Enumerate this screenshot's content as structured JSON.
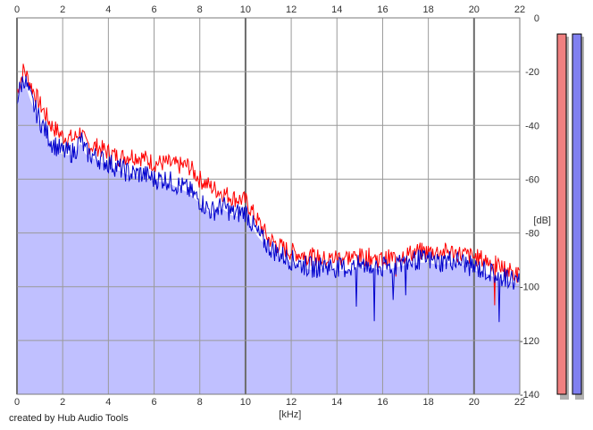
{
  "chart_data": {
    "type": "area",
    "xlabel": "[kHz]",
    "ylabel": "[dB]",
    "xlim": [
      0,
      22
    ],
    "ylim": [
      -140,
      0
    ],
    "x_ticks": [
      0,
      2,
      4,
      6,
      8,
      10,
      12,
      14,
      16,
      18,
      20,
      22
    ],
    "x_tick_labels": [
      "0",
      "2",
      "4",
      "6",
      "8",
      "10",
      "12",
      "14",
      "16",
      "18",
      "20",
      "22"
    ],
    "y_ticks": [
      0,
      -20,
      -40,
      -60,
      -80,
      -100,
      -120,
      -140
    ],
    "y_tick_labels": [
      "0",
      "-20",
      "-40",
      "-60",
      "-80",
      "-100",
      "-120",
      "-140"
    ],
    "grid": true,
    "series": [
      {
        "color": "#ff0000",
        "x": [
          0.0,
          0.3,
          0.6,
          1.0,
          1.5,
          2.0,
          2.5,
          2.8,
          3.0,
          3.5,
          4.0,
          4.5,
          5.0,
          5.5,
          6.0,
          6.5,
          7.0,
          7.5,
          8.0,
          8.5,
          9.0,
          9.5,
          10.0,
          10.5,
          11.0,
          11.5,
          12.0,
          12.5,
          13.0,
          13.5,
          14.0,
          14.5,
          15.0,
          15.5,
          16.0,
          16.5,
          17.0,
          17.5,
          18.0,
          18.5,
          19.0,
          19.5,
          20.0,
          20.5,
          21.0,
          21.5,
          22.0
        ],
        "values": [
          -28,
          -19,
          -25,
          -32,
          -40,
          -44,
          -45,
          -42,
          -47,
          -48,
          -50,
          -52,
          -51,
          -52,
          -54,
          -54,
          -55,
          -55,
          -60,
          -63,
          -65,
          -67,
          -68,
          -75,
          -82,
          -85,
          -87,
          -88,
          -89,
          -90,
          -89,
          -89,
          -89,
          -89,
          -90,
          -89,
          -88,
          -87,
          -87,
          -87,
          -87,
          -88,
          -89,
          -90,
          -92,
          -94,
          -96
        ]
      },
      {
        "color": "#0000cc",
        "x": [
          0.0,
          0.3,
          0.6,
          1.0,
          1.5,
          2.0,
          2.5,
          2.8,
          3.0,
          3.5,
          4.0,
          4.5,
          5.0,
          5.5,
          6.0,
          6.5,
          7.0,
          7.5,
          8.0,
          8.5,
          9.0,
          9.5,
          10.0,
          10.5,
          11.0,
          11.5,
          12.0,
          12.5,
          13.0,
          13.5,
          14.0,
          14.5,
          15.0,
          15.5,
          16.0,
          16.5,
          17.0,
          17.5,
          18.0,
          18.5,
          19.0,
          19.5,
          20.0,
          20.5,
          21.0,
          21.5,
          22.0
        ],
        "values": [
          -30,
          -22,
          -30,
          -38,
          -46,
          -50,
          -50,
          -45,
          -50,
          -52,
          -54,
          -56,
          -58,
          -58,
          -60,
          -60,
          -62,
          -64,
          -68,
          -72,
          -70,
          -73,
          -72,
          -80,
          -85,
          -88,
          -90,
          -92,
          -93,
          -92,
          -93,
          -93,
          -92,
          -92,
          -93,
          -92,
          -91,
          -90,
          -90,
          -91,
          -90,
          -91,
          -93,
          -94,
          -96,
          -97,
          -98
        ]
      }
    ],
    "level_meters": [
      {
        "color": "#f08080",
        "level": -6
      },
      {
        "color": "#8080f0",
        "level": -6
      }
    ],
    "fill_color": "#c0c0ff",
    "credit": "created by Hub Audio Tools"
  }
}
